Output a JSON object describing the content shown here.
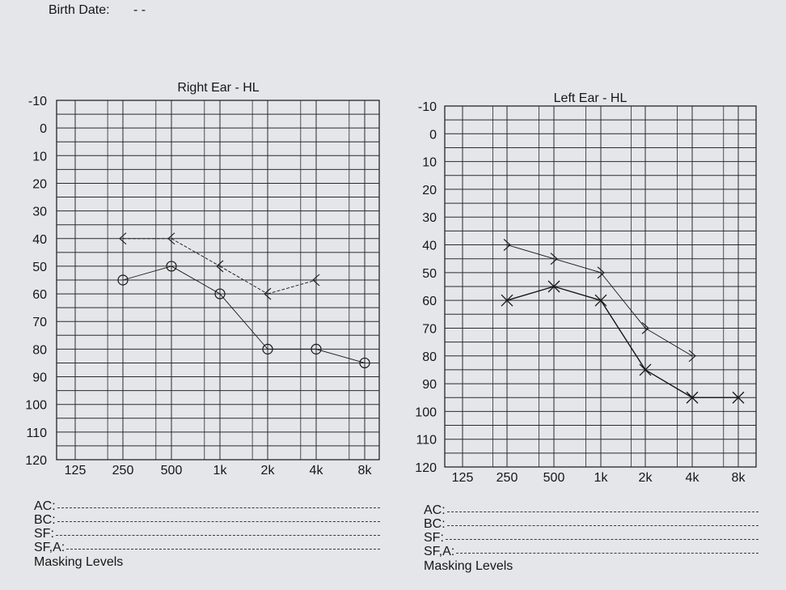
{
  "header": {
    "birth_date_label": "Birth Date:",
    "birth_date_value": "- -"
  },
  "colors": {
    "ink": "#161616",
    "paper": "#e4e6e9",
    "grid": "#2a2a2a"
  },
  "legend": {
    "ac": "AC:",
    "bc": "BC:",
    "sf": "SF:",
    "sfa": "SF,A:",
    "masking": "Masking Levels"
  },
  "chart_data": [
    {
      "type": "line",
      "title": "Right Ear - HL",
      "xlabel": "",
      "ylabel": "",
      "categories": [
        "125",
        "250",
        "500",
        "1k",
        "2k",
        "4k",
        "8k"
      ],
      "y_ticks": [
        -10,
        0,
        10,
        20,
        30,
        40,
        50,
        60,
        70,
        80,
        90,
        100,
        110,
        120
      ],
      "ylim": [
        120,
        -10
      ],
      "grid": true,
      "series": [
        {
          "marker": "circle",
          "values": [
            null,
            55,
            50,
            60,
            80,
            80,
            85
          ]
        },
        {
          "marker": "left-caret",
          "values": [
            null,
            40,
            40,
            50,
            60,
            55,
            null
          ]
        }
      ]
    },
    {
      "type": "line",
      "title": "Left Ear - HL",
      "xlabel": "",
      "ylabel": "",
      "categories": [
        "125",
        "250",
        "500",
        "1k",
        "2k",
        "4k",
        "8k"
      ],
      "y_ticks": [
        -10,
        0,
        10,
        20,
        30,
        40,
        50,
        60,
        70,
        80,
        90,
        100,
        110,
        120
      ],
      "ylim": [
        120,
        -10
      ],
      "grid": true,
      "series": [
        {
          "marker": "x",
          "values": [
            null,
            60,
            55,
            60,
            85,
            95,
            95
          ]
        },
        {
          "marker": "right-caret",
          "values": [
            null,
            40,
            45,
            50,
            70,
            80,
            null
          ]
        }
      ]
    }
  ]
}
